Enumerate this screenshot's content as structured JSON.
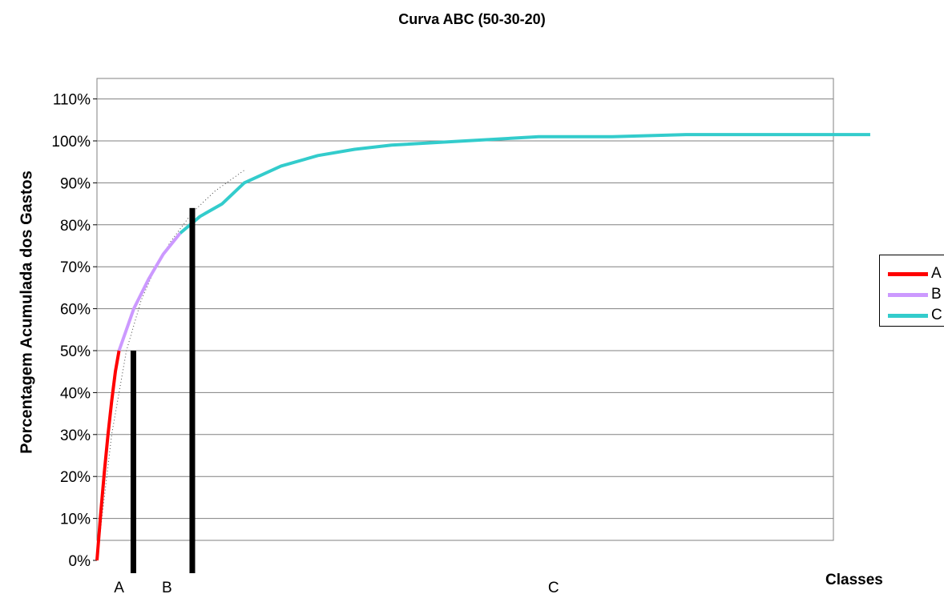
{
  "chart_data": {
    "type": "line",
    "title": "Curva ABC (50-30-20)",
    "xlabel": "Classes",
    "ylabel": "Porcentagem Acumulada dos Gastos",
    "ylim": [
      0,
      1.1
    ],
    "y_ticks": [
      "0%",
      "10%",
      "20%",
      "30%",
      "40%",
      "50%",
      "60%",
      "70%",
      "80%",
      "90%",
      "100%",
      "110%"
    ],
    "grid": true,
    "legend_position": "right",
    "series": [
      {
        "name": "A",
        "color": "#ff0000",
        "x": [
          0.0,
          0.005,
          0.01,
          0.015,
          0.02,
          0.025,
          0.03
        ],
        "y": [
          0.0,
          0.11,
          0.21,
          0.3,
          0.38,
          0.45,
          0.5
        ]
      },
      {
        "name": "B",
        "color": "#cc99ff",
        "x": [
          0.03,
          0.05,
          0.07,
          0.09,
          0.113
        ],
        "y": [
          0.5,
          0.6,
          0.67,
          0.73,
          0.78
        ]
      },
      {
        "name": "C",
        "color": "#33cccc",
        "x": [
          0.113,
          0.14,
          0.17,
          0.2,
          0.25,
          0.3,
          0.35,
          0.4,
          0.5,
          0.6,
          0.7,
          0.8,
          0.9,
          1.0,
          1.05
        ],
        "y": [
          0.78,
          0.82,
          0.85,
          0.9,
          0.94,
          0.965,
          0.98,
          0.99,
          1.0,
          1.01,
          1.01,
          1.015,
          1.015,
          1.015,
          1.015
        ]
      }
    ],
    "trend_line": {
      "x": [
        0.0,
        0.02,
        0.04,
        0.06,
        0.08,
        0.1,
        0.13,
        0.16,
        0.2
      ],
      "y": [
        0.0,
        0.3,
        0.5,
        0.62,
        0.7,
        0.76,
        0.83,
        0.88,
        0.93
      ]
    },
    "class_dividers": [
      {
        "x": 0.05,
        "top": 0.5
      },
      {
        "x": 0.13,
        "top": 0.84
      }
    ],
    "class_labels": [
      {
        "label": "A",
        "x": 0.03
      },
      {
        "label": "B",
        "x": 0.095
      },
      {
        "label": "C",
        "x": 0.62
      }
    ]
  }
}
